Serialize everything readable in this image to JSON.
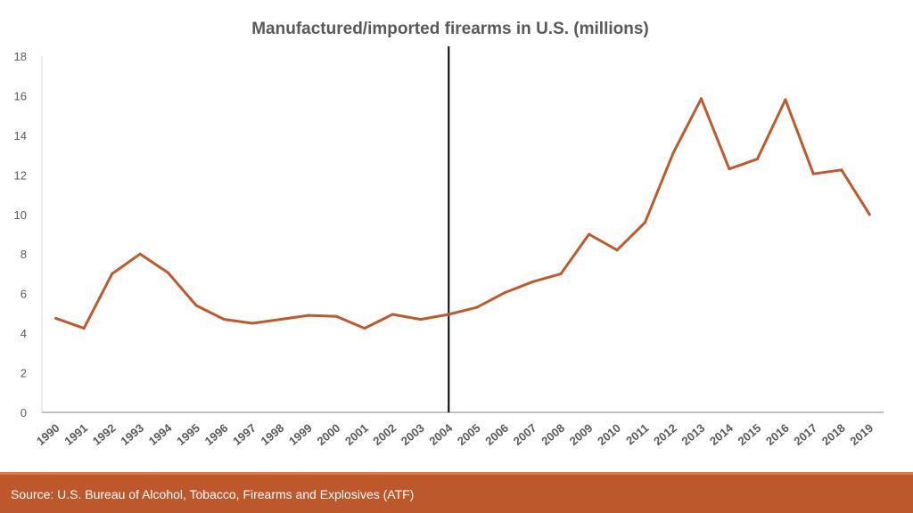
{
  "chart_data": {
    "type": "line",
    "title": "Manufactured/imported firearms in U.S. (millions)",
    "xlabel": "",
    "ylabel": "",
    "ylim": [
      0,
      18
    ],
    "yticks": [
      0,
      2,
      4,
      6,
      8,
      10,
      12,
      14,
      16,
      18
    ],
    "categories": [
      "1990",
      "1991",
      "1992",
      "1993",
      "1994",
      "1995",
      "1996",
      "1997",
      "1998",
      "1999",
      "2000",
      "2001",
      "2002",
      "2003",
      "2004",
      "2005",
      "2006",
      "2007",
      "2008",
      "2009",
      "2010",
      "2011",
      "2012",
      "2013",
      "2014",
      "2015",
      "2016",
      "2017",
      "2018",
      "2019"
    ],
    "series": [
      {
        "values": [
          4.75,
          4.25,
          7.0,
          8.0,
          7.05,
          5.4,
          4.7,
          4.5,
          4.7,
          4.9,
          4.85,
          4.25,
          4.95,
          4.7,
          4.95,
          5.3,
          6.05,
          6.6,
          7.0,
          9.0,
          8.2,
          9.6,
          13.1,
          15.85,
          12.3,
          12.8,
          15.8,
          12.05,
          12.25,
          10.0
        ],
        "color": "#c0592d"
      }
    ],
    "reference_line": {
      "category": "2004",
      "color": "#000000"
    },
    "grid": false,
    "legend": "none"
  },
  "footer": {
    "source": "Source: U.S. Bureau of Alcohol, Tobacco, Firearms and Explosives (ATF)"
  }
}
